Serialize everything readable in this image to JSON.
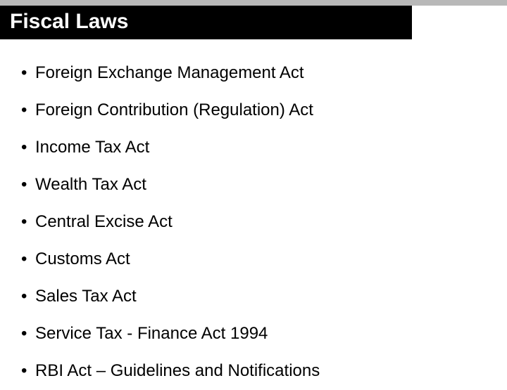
{
  "slide": {
    "title": "Fiscal Laws",
    "title_bg_color": "#000000",
    "title_text_color": "#ffffff",
    "title_fontsize": 30,
    "header_band_color": "#b8b8b8",
    "background_color": "#ffffff",
    "bullet_fontsize": 24,
    "bullet_color": "#000000",
    "bullet_marker": "•",
    "items": [
      "Foreign Exchange Management Act",
      "Foreign Contribution (Regulation) Act",
      "Income Tax Act",
      "Wealth Tax Act",
      "Central Excise Act",
      "Customs Act",
      "Sales Tax Act",
      "Service Tax - Finance Act 1994",
      "RBI Act – Guidelines and Notifications"
    ]
  }
}
